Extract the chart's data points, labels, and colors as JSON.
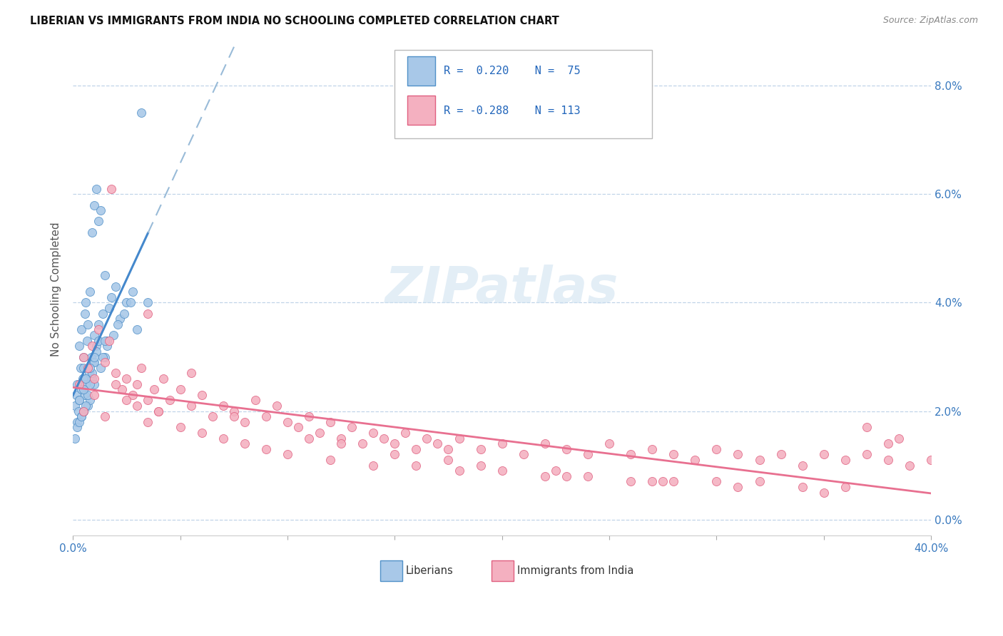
{
  "title": "LIBERIAN VS IMMIGRANTS FROM INDIA NO SCHOOLING COMPLETED CORRELATION CHART",
  "source": "Source: ZipAtlas.com",
  "ylabel": "No Schooling Completed",
  "ytick_vals": [
    0.0,
    2.0,
    4.0,
    6.0,
    8.0
  ],
  "xmin": 0.0,
  "xmax": 40.0,
  "ymin": -0.3,
  "ymax": 8.8,
  "color_liberian": "#a8c8e8",
  "color_india": "#f4b0c0",
  "edge_liberian": "#5090c8",
  "edge_india": "#e06080",
  "trend_blue": "#4488cc",
  "trend_blue_dash": "#99bbd8",
  "trend_pink": "#e87090",
  "watermark": "ZIPatlas",
  "liberian_x": [
    0.1,
    0.15,
    0.2,
    0.2,
    0.25,
    0.3,
    0.3,
    0.35,
    0.4,
    0.4,
    0.4,
    0.45,
    0.5,
    0.5,
    0.5,
    0.55,
    0.55,
    0.6,
    0.6,
    0.65,
    0.7,
    0.7,
    0.75,
    0.8,
    0.8,
    0.85,
    0.9,
    0.9,
    0.95,
    1.0,
    1.0,
    1.0,
    1.1,
    1.1,
    1.2,
    1.2,
    1.3,
    1.4,
    1.5,
    1.5,
    1.6,
    1.7,
    1.8,
    2.0,
    2.2,
    2.5,
    2.8,
    3.0,
    3.5,
    0.1,
    0.2,
    0.3,
    0.4,
    0.5,
    0.6,
    0.7,
    0.8,
    0.9,
    1.0,
    1.1,
    1.2,
    1.3,
    1.4,
    1.6,
    1.9,
    2.1,
    2.4,
    2.7,
    3.2,
    0.3,
    0.5,
    0.6,
    0.8,
    1.0,
    1.5
  ],
  "liberian_y": [
    2.1,
    2.3,
    2.5,
    1.8,
    2.0,
    2.2,
    3.2,
    2.8,
    2.4,
    1.9,
    3.5,
    2.6,
    2.0,
    2.8,
    3.0,
    2.3,
    3.8,
    2.5,
    4.0,
    3.3,
    2.1,
    3.6,
    2.7,
    2.2,
    4.2,
    3.0,
    2.6,
    5.3,
    2.9,
    2.5,
    3.4,
    5.8,
    3.2,
    6.1,
    5.5,
    3.6,
    5.7,
    3.8,
    3.0,
    4.5,
    3.3,
    3.9,
    4.1,
    4.3,
    3.7,
    4.0,
    4.2,
    3.5,
    4.0,
    1.5,
    1.7,
    1.8,
    1.9,
    2.0,
    2.1,
    2.3,
    2.5,
    2.7,
    2.9,
    3.1,
    3.3,
    2.8,
    3.0,
    3.2,
    3.4,
    3.6,
    3.8,
    4.0,
    7.5,
    2.2,
    2.4,
    2.6,
    2.8,
    3.0,
    3.3
  ],
  "india_x": [
    0.3,
    0.5,
    0.7,
    0.9,
    1.0,
    1.2,
    1.5,
    1.7,
    2.0,
    2.3,
    2.5,
    2.8,
    3.0,
    3.2,
    3.5,
    3.8,
    4.0,
    4.2,
    4.5,
    5.0,
    5.5,
    6.0,
    6.5,
    7.0,
    7.5,
    8.0,
    8.5,
    9.0,
    9.5,
    10.0,
    10.5,
    11.0,
    11.5,
    12.0,
    12.5,
    13.0,
    13.5,
    14.0,
    14.5,
    15.0,
    15.5,
    16.0,
    16.5,
    17.0,
    17.5,
    18.0,
    19.0,
    20.0,
    21.0,
    22.0,
    23.0,
    24.0,
    25.0,
    26.0,
    27.0,
    28.0,
    29.0,
    30.0,
    31.0,
    32.0,
    33.0,
    34.0,
    35.0,
    36.0,
    37.0,
    38.0,
    39.0,
    40.0,
    0.5,
    1.0,
    1.5,
    2.0,
    2.5,
    3.0,
    3.5,
    4.0,
    5.0,
    6.0,
    7.0,
    8.0,
    9.0,
    10.0,
    12.0,
    14.0,
    16.0,
    18.0,
    20.0,
    22.0,
    24.0,
    26.0,
    28.0,
    30.0,
    32.0,
    34.0,
    36.0,
    37.0,
    38.5,
    1.8,
    5.5,
    11.0,
    15.0,
    19.0,
    23.0,
    27.0,
    31.0,
    35.0,
    38.0,
    3.5,
    7.5,
    12.5,
    17.5,
    22.5,
    27.5
  ],
  "india_y": [
    2.5,
    3.0,
    2.8,
    3.2,
    2.6,
    3.5,
    2.9,
    3.3,
    2.7,
    2.4,
    2.6,
    2.3,
    2.5,
    2.8,
    2.2,
    2.4,
    2.0,
    2.6,
    2.2,
    2.4,
    2.1,
    2.3,
    1.9,
    2.1,
    2.0,
    1.8,
    2.2,
    1.9,
    2.1,
    1.8,
    1.7,
    1.9,
    1.6,
    1.8,
    1.5,
    1.7,
    1.4,
    1.6,
    1.5,
    1.4,
    1.6,
    1.3,
    1.5,
    1.4,
    1.3,
    1.5,
    1.3,
    1.4,
    1.2,
    1.4,
    1.3,
    1.2,
    1.4,
    1.2,
    1.3,
    1.2,
    1.1,
    1.3,
    1.2,
    1.1,
    1.2,
    1.0,
    1.2,
    1.1,
    1.2,
    1.1,
    1.0,
    1.1,
    2.0,
    2.3,
    1.9,
    2.5,
    2.2,
    2.1,
    1.8,
    2.0,
    1.7,
    1.6,
    1.5,
    1.4,
    1.3,
    1.2,
    1.1,
    1.0,
    1.0,
    0.9,
    0.9,
    0.8,
    0.8,
    0.7,
    0.7,
    0.7,
    0.7,
    0.6,
    0.6,
    1.7,
    1.5,
    6.1,
    2.7,
    1.5,
    1.2,
    1.0,
    0.8,
    0.7,
    0.6,
    0.5,
    1.4,
    3.8,
    1.9,
    1.4,
    1.1,
    0.9,
    0.7
  ]
}
